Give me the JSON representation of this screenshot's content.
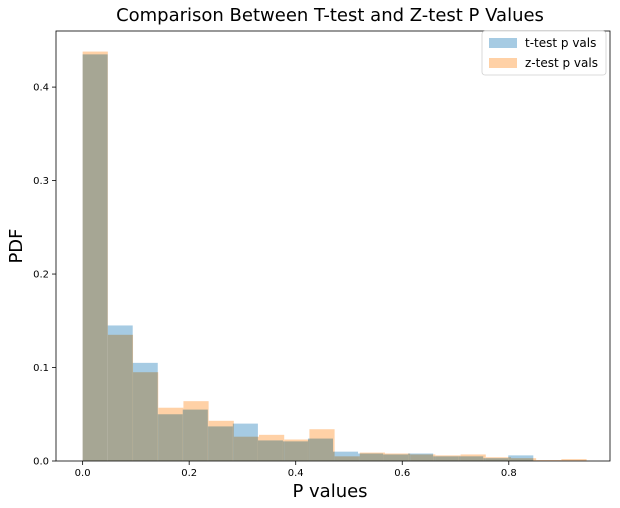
{
  "chart_data": {
    "type": "bar",
    "title": "Comparison Between T-test and Z-test P Values",
    "xlabel": "P values",
    "ylabel": "PDF",
    "xlim": [
      -0.05,
      0.99
    ],
    "ylim": [
      0,
      0.46
    ],
    "xticks": [
      0.0,
      0.2,
      0.4,
      0.6,
      0.8
    ],
    "xtick_labels": [
      "0.0",
      "0.2",
      "0.4",
      "0.6",
      "0.8"
    ],
    "yticks": [
      0.0,
      0.1,
      0.2,
      0.3,
      0.4
    ],
    "ytick_labels": [
      "0.0",
      "0.1",
      "0.2",
      "0.3",
      "0.4"
    ],
    "grid": false,
    "legend_position": "top-right",
    "series": [
      {
        "name": "t-test p vals",
        "color": "#a6cbe3",
        "bin_edges": [
          0.0,
          0.047,
          0.094,
          0.141,
          0.188,
          0.235,
          0.282,
          0.329,
          0.376,
          0.423,
          0.47,
          0.517,
          0.564,
          0.611,
          0.658,
          0.705,
          0.752,
          0.799,
          0.846
        ],
        "values": [
          0.435,
          0.145,
          0.105,
          0.05,
          0.055,
          0.037,
          0.04,
          0.022,
          0.021,
          0.024,
          0.01,
          0.008,
          0.007,
          0.008,
          0.005,
          0.005,
          0.003,
          0.006
        ]
      },
      {
        "name": "z-test p vals",
        "color": "#ffd1a6",
        "bin_edges": [
          0.0,
          0.0473,
          0.0946,
          0.1419,
          0.1892,
          0.2365,
          0.2838,
          0.3311,
          0.3784,
          0.4257,
          0.473,
          0.5203,
          0.5676,
          0.6149,
          0.6622,
          0.7095,
          0.7568,
          0.8041,
          0.8514,
          0.8987,
          0.946
        ],
        "values": [
          0.438,
          0.135,
          0.095,
          0.057,
          0.064,
          0.043,
          0.026,
          0.028,
          0.023,
          0.034,
          0.005,
          0.009,
          0.008,
          0.007,
          0.006,
          0.007,
          0.004,
          0.003,
          0.001,
          0.002
        ]
      }
    ]
  }
}
